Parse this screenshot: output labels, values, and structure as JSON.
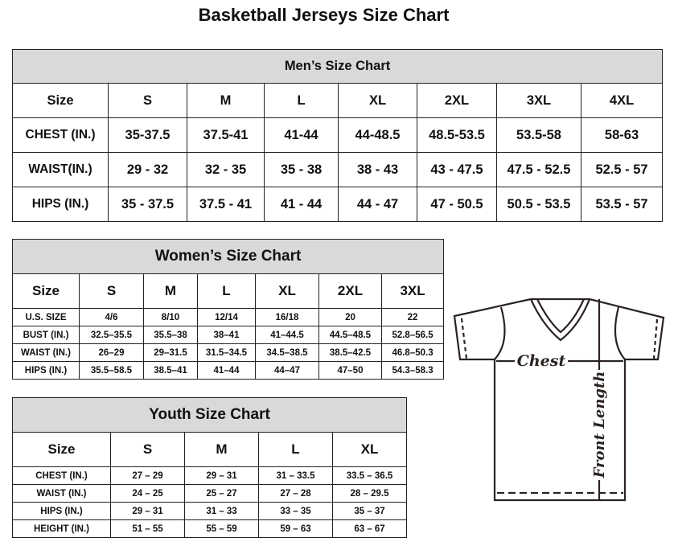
{
  "title": "Basketball Jerseys Size Chart",
  "men": {
    "header": "Men’s Size Chart",
    "sizes": [
      "Size",
      "S",
      "M",
      "L",
      "XL",
      "2XL",
      "3XL",
      "4XL"
    ],
    "rows": [
      [
        "CHEST (IN.)",
        "35-37.5",
        "37.5-41",
        "41-44",
        "44-48.5",
        "48.5-53.5",
        "53.5-58",
        "58-63"
      ],
      [
        "WAIST(IN.)",
        "29 - 32",
        "32 - 35",
        "35 - 38",
        "38 - 43",
        "43 - 47.5",
        "47.5 - 52.5",
        "52.5 - 57"
      ],
      [
        "HIPS (IN.)",
        "35 - 37.5",
        "37.5 - 41",
        "41 - 44",
        "44 - 47",
        "47 - 50.5",
        "50.5 - 53.5",
        "53.5 - 57"
      ]
    ]
  },
  "women": {
    "header": "Women’s Size Chart",
    "sizes": [
      "Size",
      "S",
      "M",
      "L",
      "XL",
      "2XL",
      "3XL"
    ],
    "rows": [
      [
        "U.S.  SIZE",
        "4/6",
        "8/10",
        "12/14",
        "16/18",
        "20",
        "22"
      ],
      [
        "BUST  (IN.)",
        "32.5–35.5",
        "35.5–38",
        "38–41",
        "41–44.5",
        "44.5–48.5",
        "52.8–56.5"
      ],
      [
        "WAIST  (IN.)",
        "26–29",
        "29–31.5",
        "31.5–34.5",
        "34.5–38.5",
        "38.5–42.5",
        "46.8–50.3"
      ],
      [
        "HIPS  (IN.)",
        "35.5–58.5",
        "38.5–41",
        "41–44",
        "44–47",
        "47–50",
        "54.3–58.3"
      ]
    ]
  },
  "youth": {
    "header": "Youth Size Chart",
    "sizes": [
      "Size",
      "S",
      "M",
      "L",
      "XL"
    ],
    "rows": [
      [
        "CHEST  (IN.)",
        "27  –  29",
        "29  –  31",
        "31  –  33.5",
        "33.5  –  36.5"
      ],
      [
        "WAIST  (IN.)",
        "24  –  25",
        "25  –  27",
        "27  –  28",
        "28  –  29.5"
      ],
      [
        "HIPS  (IN.)",
        "29  –  31",
        "31  –  33",
        "33  –  35",
        "35  –  37"
      ],
      [
        "HEIGHT  (IN.)",
        "51  –  55",
        "55  –  59",
        "59  –  63",
        "63  –  67"
      ]
    ]
  },
  "diagram": {
    "chest_label": "Chest",
    "length_label": "Front Length"
  }
}
